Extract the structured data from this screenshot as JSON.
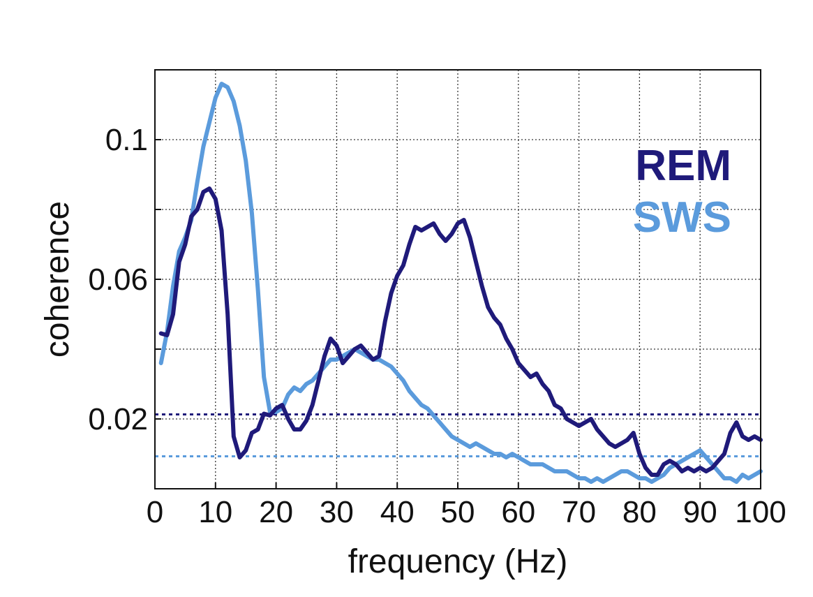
{
  "chart_data": {
    "type": "line",
    "title": "",
    "xlabel": "frequency (Hz)",
    "ylabel": "coherence",
    "xlim": [
      0,
      100
    ],
    "ylim": [
      0.0,
      0.12
    ],
    "x_ticks": [
      0,
      10,
      20,
      30,
      40,
      50,
      60,
      70,
      80,
      90,
      100
    ],
    "x_tick_labels": [
      "0",
      "10",
      "20",
      "30",
      "40",
      "50",
      "60",
      "70",
      "80",
      "90",
      "100"
    ],
    "y_ticks": [
      0.02,
      0.06,
      0.1
    ],
    "y_tick_labels": [
      "0.02",
      "0.06",
      "0.1"
    ],
    "y_grid": [
      0.0,
      0.02,
      0.04,
      0.06,
      0.08,
      0.1,
      0.12
    ],
    "grid": true,
    "legend_position": "top-right",
    "series": [
      {
        "name": "REM",
        "color": "#1f1a7a",
        "threshold": 0.0213,
        "points": [
          [
            1,
            0.0445
          ],
          [
            2,
            0.044
          ],
          [
            3,
            0.05
          ],
          [
            4,
            0.065
          ],
          [
            5,
            0.07
          ],
          [
            6,
            0.078
          ],
          [
            7,
            0.08
          ],
          [
            8,
            0.085
          ],
          [
            9,
            0.086
          ],
          [
            10,
            0.083
          ],
          [
            11,
            0.074
          ],
          [
            12,
            0.05
          ],
          [
            13,
            0.015
          ],
          [
            14,
            0.009
          ],
          [
            15,
            0.011
          ],
          [
            16,
            0.016
          ],
          [
            17,
            0.017
          ],
          [
            18,
            0.0215
          ],
          [
            19,
            0.021
          ],
          [
            20,
            0.023
          ],
          [
            21,
            0.024
          ],
          [
            22,
            0.02
          ],
          [
            23,
            0.017
          ],
          [
            24,
            0.017
          ],
          [
            25,
            0.0195
          ],
          [
            26,
            0.024
          ],
          [
            27,
            0.031
          ],
          [
            28,
            0.038
          ],
          [
            29,
            0.043
          ],
          [
            30,
            0.041
          ],
          [
            31,
            0.036
          ],
          [
            32,
            0.038
          ],
          [
            33,
            0.04
          ],
          [
            34,
            0.041
          ],
          [
            35,
            0.039
          ],
          [
            36,
            0.037
          ],
          [
            37,
            0.038
          ],
          [
            38,
            0.048
          ],
          [
            39,
            0.056
          ],
          [
            40,
            0.061
          ],
          [
            41,
            0.064
          ],
          [
            42,
            0.07
          ],
          [
            43,
            0.075
          ],
          [
            44,
            0.074
          ],
          [
            45,
            0.075
          ],
          [
            46,
            0.076
          ],
          [
            47,
            0.073
          ],
          [
            48,
            0.071
          ],
          [
            49,
            0.073
          ],
          [
            50,
            0.076
          ],
          [
            51,
            0.077
          ],
          [
            52,
            0.072
          ],
          [
            53,
            0.065
          ],
          [
            54,
            0.058
          ],
          [
            55,
            0.052
          ],
          [
            56,
            0.049
          ],
          [
            57,
            0.047
          ],
          [
            58,
            0.043
          ],
          [
            59,
            0.04
          ],
          [
            60,
            0.036
          ],
          [
            61,
            0.034
          ],
          [
            62,
            0.032
          ],
          [
            63,
            0.033
          ],
          [
            64,
            0.03
          ],
          [
            65,
            0.028
          ],
          [
            66,
            0.024
          ],
          [
            67,
            0.023
          ],
          [
            68,
            0.02
          ],
          [
            69,
            0.019
          ],
          [
            70,
            0.018
          ],
          [
            71,
            0.019
          ],
          [
            72,
            0.02
          ],
          [
            73,
            0.017
          ],
          [
            74,
            0.015
          ],
          [
            75,
            0.013
          ],
          [
            76,
            0.012
          ],
          [
            77,
            0.013
          ],
          [
            78,
            0.014
          ],
          [
            79,
            0.016
          ],
          [
            80,
            0.01
          ],
          [
            81,
            0.006
          ],
          [
            82,
            0.004
          ],
          [
            83,
            0.004
          ],
          [
            84,
            0.007
          ],
          [
            85,
            0.008
          ],
          [
            86,
            0.007
          ],
          [
            87,
            0.005
          ],
          [
            88,
            0.006
          ],
          [
            89,
            0.005
          ],
          [
            90,
            0.006
          ],
          [
            91,
            0.005
          ],
          [
            92,
            0.006
          ],
          [
            93,
            0.008
          ],
          [
            94,
            0.01
          ],
          [
            95,
            0.016
          ],
          [
            96,
            0.019
          ],
          [
            97,
            0.015
          ],
          [
            98,
            0.014
          ],
          [
            99,
            0.015
          ],
          [
            100,
            0.014
          ]
        ]
      },
      {
        "name": "SWS",
        "color": "#5b9bdc",
        "threshold": 0.0093,
        "points": [
          [
            1,
            0.036
          ],
          [
            2,
            0.045
          ],
          [
            3,
            0.058
          ],
          [
            4,
            0.068
          ],
          [
            5,
            0.072
          ],
          [
            6,
            0.077
          ],
          [
            7,
            0.088
          ],
          [
            8,
            0.098
          ],
          [
            9,
            0.105
          ],
          [
            10,
            0.112
          ],
          [
            11,
            0.116
          ],
          [
            12,
            0.115
          ],
          [
            13,
            0.111
          ],
          [
            14,
            0.104
          ],
          [
            15,
            0.094
          ],
          [
            16,
            0.079
          ],
          [
            17,
            0.057
          ],
          [
            18,
            0.032
          ],
          [
            19,
            0.022
          ],
          [
            20,
            0.022
          ],
          [
            21,
            0.023
          ],
          [
            22,
            0.027
          ],
          [
            23,
            0.029
          ],
          [
            24,
            0.028
          ],
          [
            25,
            0.03
          ],
          [
            26,
            0.031
          ],
          [
            27,
            0.033
          ],
          [
            28,
            0.035
          ],
          [
            29,
            0.037
          ],
          [
            30,
            0.037
          ],
          [
            31,
            0.038
          ],
          [
            32,
            0.039
          ],
          [
            33,
            0.04
          ],
          [
            34,
            0.039
          ],
          [
            35,
            0.038
          ],
          [
            36,
            0.037
          ],
          [
            37,
            0.037
          ],
          [
            38,
            0.036
          ],
          [
            39,
            0.035
          ],
          [
            40,
            0.033
          ],
          [
            41,
            0.031
          ],
          [
            42,
            0.028
          ],
          [
            43,
            0.026
          ],
          [
            44,
            0.024
          ],
          [
            45,
            0.023
          ],
          [
            46,
            0.021
          ],
          [
            47,
            0.019
          ],
          [
            48,
            0.017
          ],
          [
            49,
            0.015
          ],
          [
            50,
            0.014
          ],
          [
            51,
            0.013
          ],
          [
            52,
            0.012
          ],
          [
            53,
            0.013
          ],
          [
            54,
            0.012
          ],
          [
            55,
            0.011
          ],
          [
            56,
            0.01
          ],
          [
            57,
            0.01
          ],
          [
            58,
            0.009
          ],
          [
            59,
            0.01
          ],
          [
            60,
            0.009
          ],
          [
            61,
            0.008
          ],
          [
            62,
            0.007
          ],
          [
            63,
            0.007
          ],
          [
            64,
            0.007
          ],
          [
            65,
            0.006
          ],
          [
            66,
            0.005
          ],
          [
            67,
            0.005
          ],
          [
            68,
            0.005
          ],
          [
            69,
            0.004
          ],
          [
            70,
            0.003
          ],
          [
            71,
            0.003
          ],
          [
            72,
            0.002
          ],
          [
            73,
            0.003
          ],
          [
            74,
            0.002
          ],
          [
            75,
            0.003
          ],
          [
            76,
            0.004
          ],
          [
            77,
            0.005
          ],
          [
            78,
            0.005
          ],
          [
            79,
            0.004
          ],
          [
            80,
            0.003
          ],
          [
            81,
            0.003
          ],
          [
            82,
            0.002
          ],
          [
            83,
            0.003
          ],
          [
            84,
            0.004
          ],
          [
            85,
            0.006
          ],
          [
            86,
            0.007
          ],
          [
            87,
            0.008
          ],
          [
            88,
            0.009
          ],
          [
            89,
            0.01
          ],
          [
            90,
            0.011
          ],
          [
            91,
            0.009
          ],
          [
            92,
            0.007
          ],
          [
            93,
            0.005
          ],
          [
            94,
            0.003
          ],
          [
            95,
            0.003
          ],
          [
            96,
            0.002
          ],
          [
            97,
            0.004
          ],
          [
            98,
            0.003
          ],
          [
            99,
            0.004
          ],
          [
            100,
            0.005
          ]
        ]
      }
    ]
  }
}
